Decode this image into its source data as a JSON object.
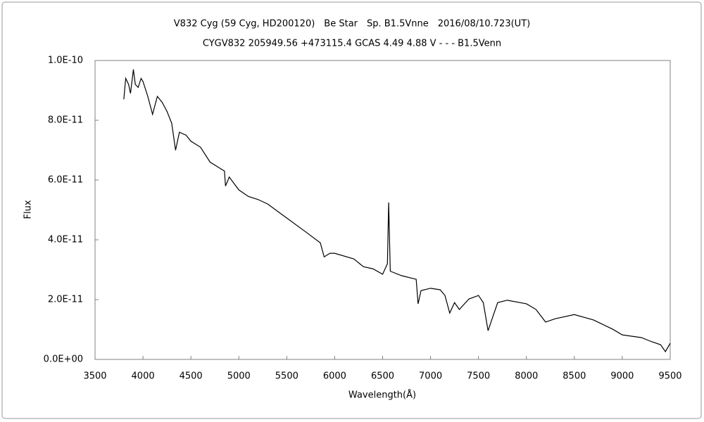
{
  "chart_data": {
    "type": "line",
    "title": "V832 Cyg (59 Cyg, HD200120)　Be Star　Sp. B1.5Vnne　2016/08/10.723(UT)",
    "subtitle": "CYGV832 205949.56 +473115.4 GCAS 4.49 4.88 V - - - B1.5Venn",
    "xlabel": "Wavelength(Å)",
    "ylabel": "Flux",
    "color": "#000000",
    "x": [
      3800,
      3820,
      3850,
      3870,
      3900,
      3920,
      3950,
      3980,
      4000,
      4050,
      4100,
      4150,
      4200,
      4250,
      4300,
      4340,
      4380,
      4450,
      4500,
      4600,
      4700,
      4800,
      4850,
      4861,
      4900,
      5000,
      5100,
      5200,
      5300,
      5500,
      5700,
      5850,
      5890,
      5950,
      6000,
      6200,
      6300,
      6400,
      6500,
      6550,
      6563,
      6580,
      6700,
      6850,
      6870,
      6900,
      7000,
      7100,
      7150,
      7200,
      7250,
      7300,
      7400,
      7500,
      7550,
      7600,
      7650,
      7700,
      7800,
      8000,
      8100,
      8200,
      8300,
      8500,
      8700,
      8900,
      9000,
      9200,
      9300,
      9400,
      9450,
      9500
    ],
    "values": [
      8.7e-11,
      9.4e-11,
      9.2e-11,
      8.9e-11,
      9.7e-11,
      9.2e-11,
      9.1e-11,
      9.4e-11,
      9.3e-11,
      8.8e-11,
      8.2e-11,
      8.8e-11,
      8.6e-11,
      8.3e-11,
      7.9e-11,
      7e-11,
      7.6e-11,
      7.5e-11,
      7.3e-11,
      7.1e-11,
      6.6e-11,
      6.4e-11,
      6.3e-11,
      5.8e-11,
      6.1e-11,
      5.67e-11,
      5.45e-11,
      5.35e-11,
      5.2e-11,
      4.73e-11,
      4.26e-11,
      3.9e-11,
      3.43e-11,
      3.55e-11,
      3.55e-11,
      3.36e-11,
      3.1e-11,
      3.03e-11,
      2.85e-11,
      3.2e-11,
      5.25e-11,
      2.95e-11,
      2.8e-11,
      2.68e-11,
      1.86e-11,
      2.3e-11,
      2.38e-11,
      2.33e-11,
      2.14e-11,
      1.55e-11,
      1.9e-11,
      1.67e-11,
      2.02e-11,
      2.14e-11,
      1.9e-11,
      9.6e-12,
      1.43e-11,
      1.9e-11,
      1.98e-11,
      1.86e-11,
      1.67e-11,
      1.25e-11,
      1.36e-11,
      1.5e-11,
      1.32e-11,
      1.01e-11,
      8.2e-12,
      7.3e-12,
      6e-12,
      4.9e-12,
      2.6e-12,
      5.4e-12
    ],
    "xlim": [
      3500,
      9500
    ],
    "xticks": [
      3500,
      4000,
      4500,
      5000,
      5500,
      6000,
      6500,
      7000,
      7500,
      8000,
      8500,
      9000,
      9500
    ],
    "ylim": [
      0,
      1e-10
    ],
    "yticks": [
      {
        "value": 0,
        "label": "0.0E+00"
      },
      {
        "value": 2e-11,
        "label": "2.0E-11"
      },
      {
        "value": 4e-11,
        "label": "4.0E-11"
      },
      {
        "value": 6e-11,
        "label": "6.0E-11"
      },
      {
        "value": 8e-11,
        "label": "8.0E-11"
      },
      {
        "value": 1e-10,
        "label": "1.0E-10"
      }
    ],
    "grid": false
  }
}
